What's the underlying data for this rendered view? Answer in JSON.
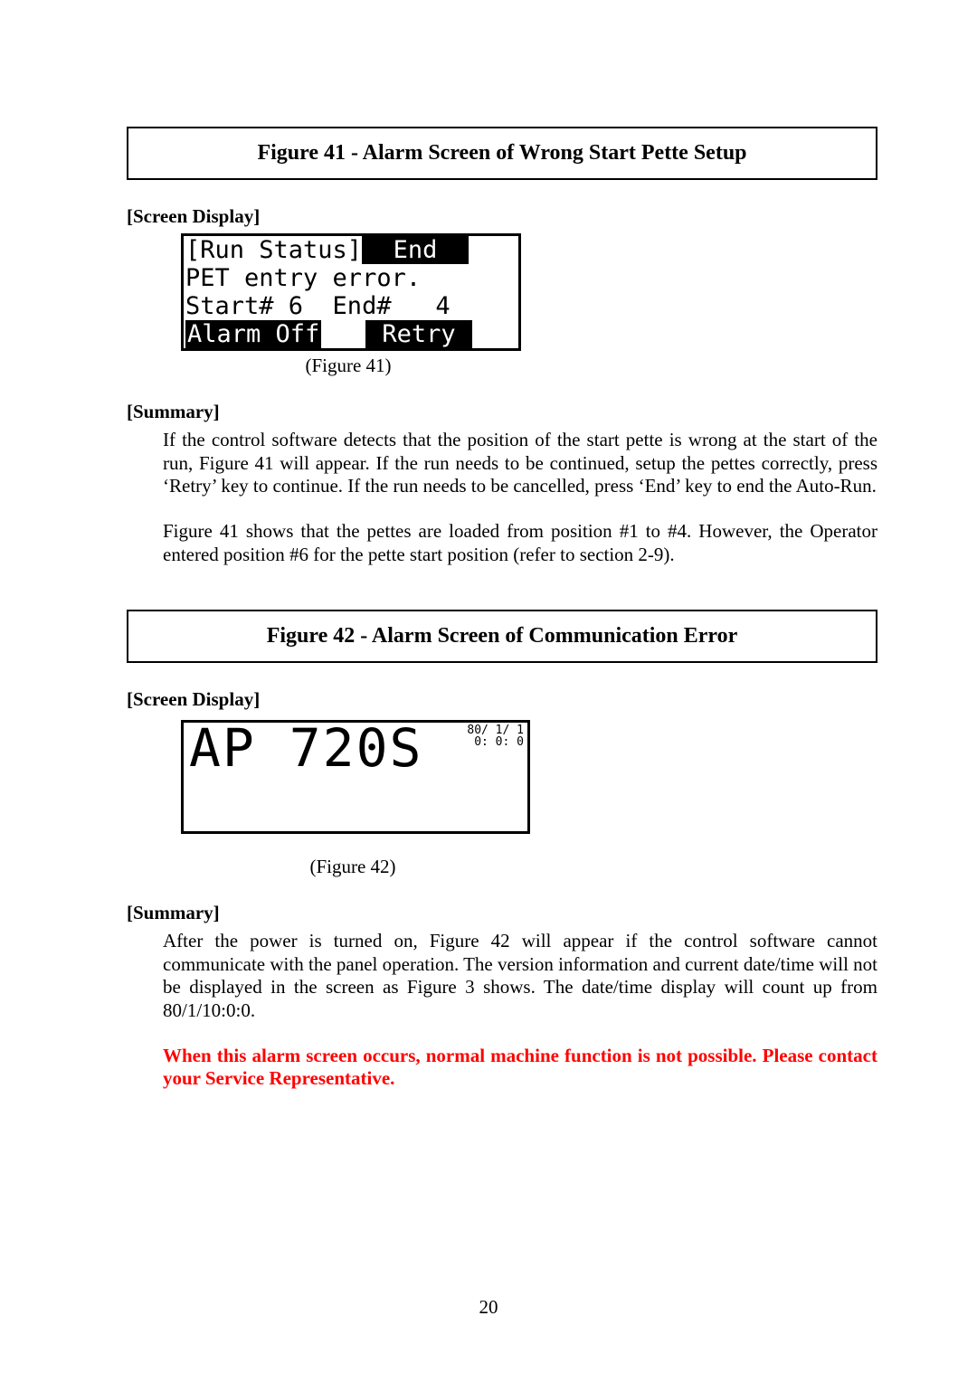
{
  "figure41": {
    "title": "Figure 41 - Alarm Screen of Wrong Start Pette Setup",
    "screen_display_heading": "[Screen Display]",
    "caption": "(Figure 41)",
    "lcd": {
      "line1_left": "[Run Status]",
      "line1_right": "  End  ",
      "line2": "PET entry error.",
      "line3": "Start# 6  End#   4",
      "line4_left": "Alarm Off",
      "line4_mid": "   ",
      "line4_right": " Retry "
    },
    "summary_heading": "[Summary]",
    "summary_p1": "If the control software detects that the position of the start pette is wrong at the start of the run, Figure 41 will appear. If the run needs to be continued, setup the pettes correctly, press ‘Retry’ key to continue. If the run needs to be cancelled, press ‘End’ key to end the Auto-Run.",
    "summary_p2": "Figure 41 shows that the pettes are loaded from position #1 to #4. However, the Operator entered position #6 for the pette start position (refer to section 2-9)."
  },
  "figure42": {
    "title": "Figure 42 - Alarm Screen of Communication Error",
    "screen_display_heading": "[Screen Display]",
    "caption": "(Figure 42)",
    "lcd": {
      "main": "AP  720S",
      "tiny": "80/ 1/ 1\n 0: 0: 0"
    },
    "summary_heading": "[Summary]",
    "summary_p1": "After the power is turned on, Figure 42 will appear if the control software cannot communicate with the panel operation. The version information and current date/time will not be displayed in the screen as Figure 3 shows. The date/time display will count up from 80/1/10:0:0.",
    "warning": "When this alarm screen occurs, normal machine function is not possible. Please contact your Service Representative.",
    "warning_color": "#ff0000"
  },
  "page_number": "20"
}
